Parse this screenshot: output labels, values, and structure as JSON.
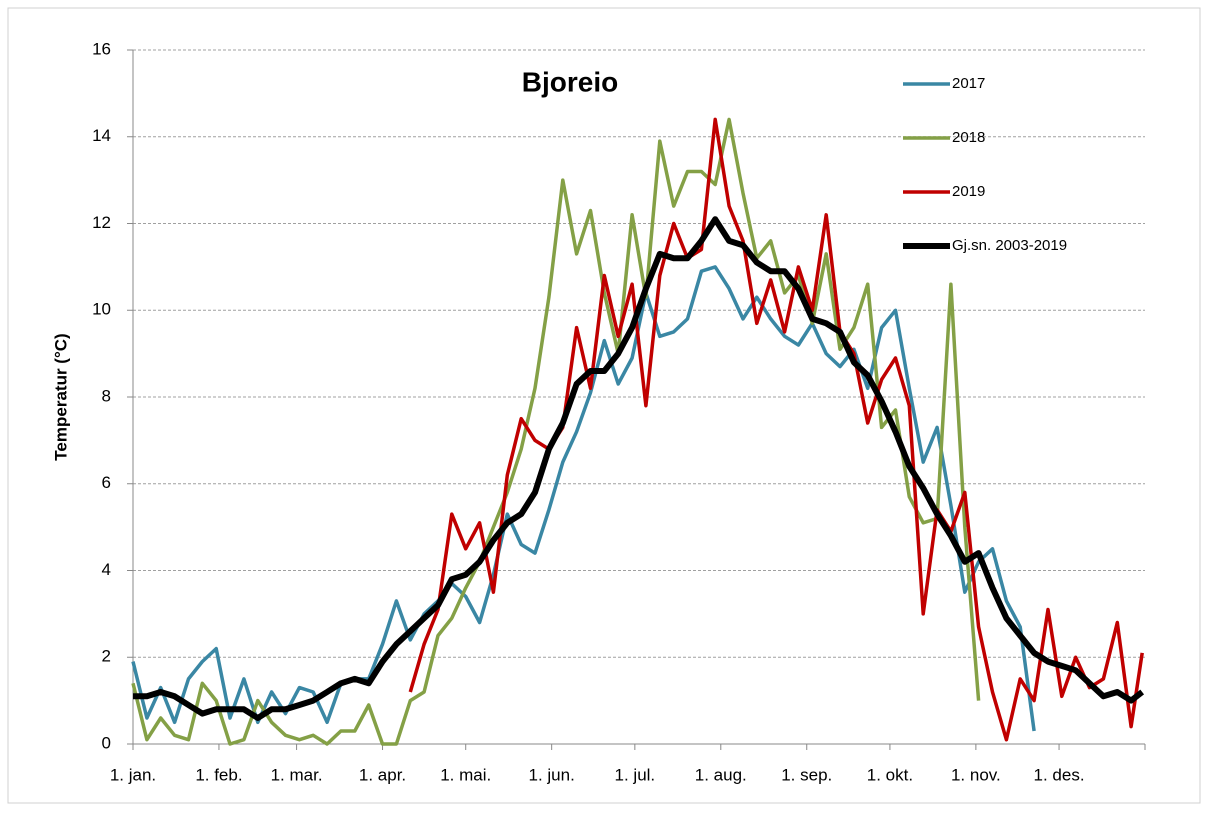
{
  "chart_data": {
    "type": "line",
    "title": "Bjoreio",
    "y_label": "Temperatur (°C)",
    "x": [
      0,
      5,
      10,
      15,
      20,
      25,
      30,
      35,
      40,
      45,
      50,
      55,
      60,
      65,
      70,
      75,
      80,
      85,
      90,
      95,
      100,
      105,
      110,
      115,
      120,
      125,
      130,
      135,
      140,
      145,
      150,
      155,
      160,
      165,
      170,
      175,
      180,
      185,
      190,
      195,
      200,
      205,
      210,
      215,
      220,
      225,
      230,
      235,
      240,
      245,
      250,
      255,
      260,
      265,
      270,
      275,
      280,
      285,
      290,
      295,
      300,
      305,
      310,
      315,
      320,
      325,
      330,
      335,
      340,
      345,
      350,
      355,
      360,
      364
    ],
    "xlim": [
      0,
      365
    ],
    "xticks": [
      {
        "value": 0,
        "label": "1. jan."
      },
      {
        "value": 31,
        "label": "1. feb."
      },
      {
        "value": 59,
        "label": "1. mar."
      },
      {
        "value": 90,
        "label": "1. apr."
      },
      {
        "value": 120,
        "label": "1. mai."
      },
      {
        "value": 151,
        "label": "1. jun."
      },
      {
        "value": 181,
        "label": "1. jul."
      },
      {
        "value": 212,
        "label": "1. aug."
      },
      {
        "value": 243,
        "label": "1. sep."
      },
      {
        "value": 273,
        "label": "1. okt."
      },
      {
        "value": 304,
        "label": "1. nov."
      },
      {
        "value": 334,
        "label": "1. des."
      }
    ],
    "ylim": [
      0,
      16
    ],
    "yticks": [
      0,
      2,
      4,
      6,
      8,
      10,
      12,
      14,
      16
    ],
    "grid": true,
    "legend": "upper right",
    "series": [
      {
        "name": "2017",
        "color": "#3a87a4",
        "width": 3.5,
        "values": [
          1.9,
          0.6,
          1.3,
          0.5,
          1.5,
          1.9,
          2.2,
          0.6,
          1.5,
          0.5,
          1.2,
          0.7,
          1.3,
          1.2,
          0.5,
          1.4,
          1.5,
          1.5,
          2.3,
          3.3,
          2.4,
          3.0,
          3.3,
          3.7,
          3.4,
          2.8,
          3.9,
          5.3,
          4.6,
          4.4,
          5.4,
          6.5,
          7.2,
          8.1,
          9.3,
          8.3,
          8.9,
          10.4,
          9.4,
          9.5,
          9.8,
          10.9,
          11.0,
          10.5,
          9.8,
          10.3,
          9.8,
          9.4,
          9.2,
          9.7,
          9.0,
          8.7,
          9.1,
          8.2,
          9.6,
          10.0,
          8.2,
          6.5,
          7.3,
          5.5,
          3.5,
          4.2,
          4.5,
          3.3,
          2.7,
          0.3,
          null,
          null,
          null,
          null,
          null,
          null,
          null,
          null
        ]
      },
      {
        "name": "2018",
        "color": "#84a046",
        "width": 3.5,
        "values": [
          1.4,
          0.1,
          0.6,
          0.2,
          0.1,
          1.4,
          1.0,
          0,
          0.1,
          1.0,
          0.5,
          0.2,
          0.1,
          0.2,
          0,
          0.3,
          0.3,
          0.9,
          0,
          0,
          1.0,
          1.2,
          2.5,
          2.9,
          3.6,
          4.2,
          5.0,
          5.8,
          6.8,
          8.2,
          10.3,
          13.0,
          11.3,
          12.3,
          10.4,
          9.0,
          12.2,
          10.3,
          13.9,
          12.4,
          13.2,
          13.2,
          12.9,
          14.4,
          12.7,
          11.2,
          11.6,
          10.4,
          10.8,
          9.7,
          11.3,
          9.1,
          9.6,
          10.6,
          7.3,
          7.7,
          5.7,
          5.1,
          5.2,
          10.6,
          5.0,
          1.0,
          null,
          null,
          null,
          null,
          null,
          null,
          null,
          null,
          null,
          null,
          null,
          null
        ]
      },
      {
        "name": "2019",
        "color": "#c00000",
        "width": 3.5,
        "values": [
          null,
          null,
          null,
          null,
          null,
          null,
          null,
          null,
          null,
          null,
          null,
          null,
          null,
          null,
          null,
          null,
          null,
          null,
          null,
          null,
          1.2,
          2.3,
          3.1,
          5.3,
          4.5,
          5.1,
          3.5,
          6.2,
          7.5,
          7.0,
          6.8,
          7.3,
          9.6,
          8.2,
          10.8,
          9.4,
          10.6,
          7.8,
          10.8,
          12.0,
          11.2,
          11.4,
          14.4,
          12.4,
          11.6,
          9.7,
          10.7,
          9.5,
          11.0,
          10.0,
          12.2,
          9.5,
          9.0,
          7.4,
          8.4,
          8.9,
          7.8,
          3.0,
          5.4,
          4.9,
          5.8,
          2.7,
          1.2,
          0.1,
          1.5,
          1.0,
          3.1,
          1.1,
          2.0,
          1.3,
          1.5,
          2.8,
          0.4,
          2.1
        ]
      },
      {
        "name": "Gj.sn. 2003-2019",
        "color": "#000000",
        "width": 6,
        "values": [
          1.1,
          1.1,
          1.2,
          1.1,
          0.9,
          0.7,
          0.8,
          0.8,
          0.8,
          0.6,
          0.8,
          0.8,
          0.9,
          1.0,
          1.2,
          1.4,
          1.5,
          1.4,
          1.9,
          2.3,
          2.6,
          2.9,
          3.2,
          3.8,
          3.9,
          4.2,
          4.7,
          5.1,
          5.3,
          5.8,
          6.8,
          7.4,
          8.3,
          8.6,
          8.6,
          9.0,
          9.6,
          10.5,
          11.3,
          11.2,
          11.2,
          11.6,
          12.1,
          11.6,
          11.5,
          11.1,
          10.9,
          10.9,
          10.5,
          9.8,
          9.7,
          9.5,
          8.8,
          8.5,
          7.9,
          7.2,
          6.4,
          5.9,
          5.3,
          4.8,
          4.2,
          4.4,
          3.6,
          2.9,
          2.5,
          2.1,
          1.9,
          1.8,
          1.7,
          1.4,
          1.1,
          1.2,
          1.0,
          1.2
        ]
      }
    ]
  }
}
